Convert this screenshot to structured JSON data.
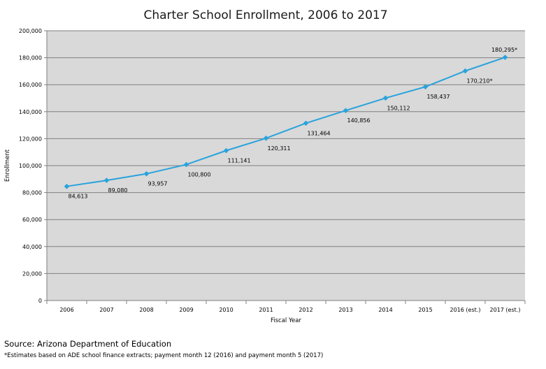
{
  "chart_data": {
    "type": "line",
    "title": "Charter School Enrollment, 2006 to 2017",
    "xlabel": "Fiscal Year",
    "ylabel": "Enrollment",
    "ylim": [
      0,
      200000
    ],
    "y_ticks": [
      "0",
      "20,000",
      "40,000",
      "60,000",
      "80,000",
      "100,000",
      "120,000",
      "140,000",
      "160,000",
      "180,000",
      "200,000"
    ],
    "categories": [
      "2006",
      "2007",
      "2008",
      "2009",
      "2010",
      "2011",
      "2012",
      "2013",
      "2014",
      "2015",
      "2016 (est.)",
      "2017 (est.)"
    ],
    "series": [
      {
        "values": [
          84613,
          89080,
          93957,
          100800,
          111141,
          120311,
          131464,
          140856,
          150112,
          158437,
          170210,
          180295
        ],
        "labels": [
          "84,613",
          "89,080",
          "93,957",
          "100,800",
          "111,141",
          "120,311",
          "131,464",
          "140,856",
          "150,112",
          "158,437",
          "170,210*",
          "180,295*"
        ],
        "color": "#29a3dc"
      }
    ],
    "grid": true,
    "plot_background": "#d9d9d9",
    "legend": "none"
  },
  "source": "Source: Arizona Department of Education",
  "footnote": "*Estimates based on ADE school finance extracts; payment month 12 (2016) and payment month 5 (2017)"
}
